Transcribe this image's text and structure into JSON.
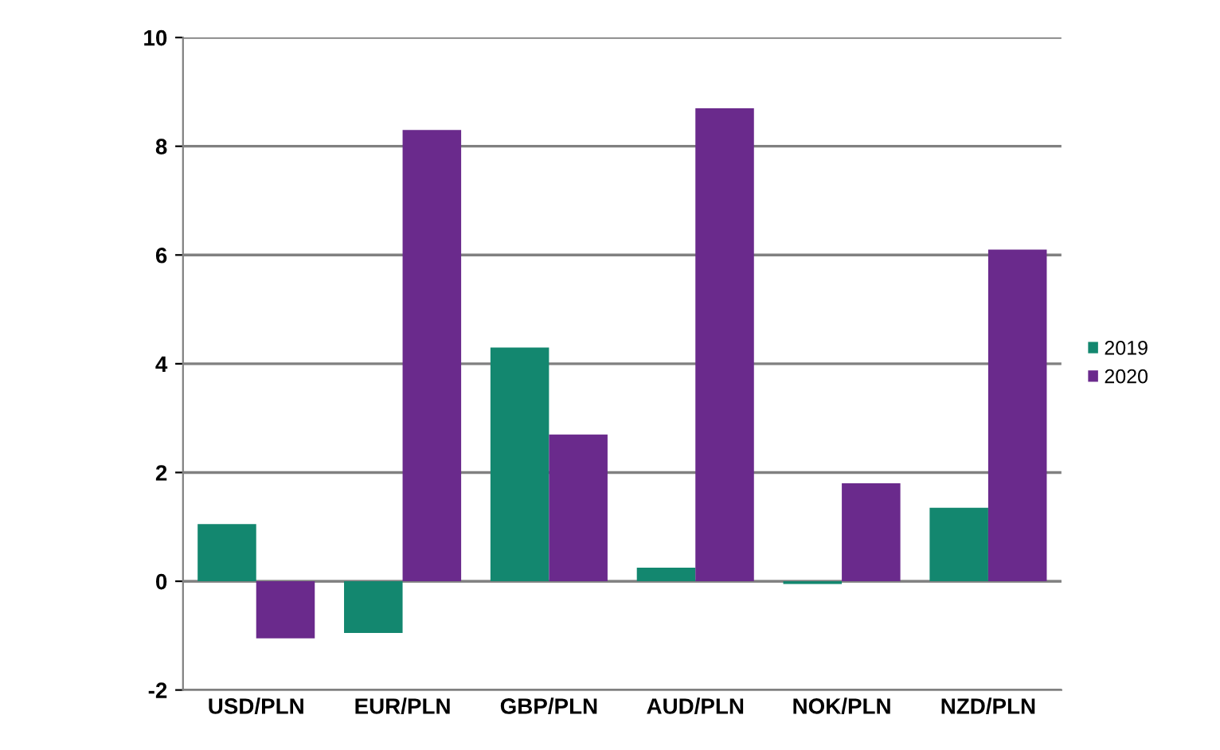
{
  "chart_data": {
    "type": "bar",
    "categories": [
      "USD/PLN",
      "EUR/PLN",
      "GBP/PLN",
      "AUD/PLN",
      "NOK/PLN",
      "NZD/PLN"
    ],
    "series": [
      {
        "name": "2019",
        "color": "#13876f",
        "values": [
          1.05,
          -0.95,
          4.3,
          0.25,
          -0.05,
          1.35
        ]
      },
      {
        "name": "2020",
        "color": "#6a2a8c",
        "values": [
          -1.05,
          8.3,
          2.7,
          8.7,
          1.8,
          6.1
        ]
      }
    ],
    "ylim": [
      -2,
      10
    ],
    "yticks": [
      -2,
      0,
      2,
      4,
      6,
      8,
      10
    ],
    "grid": "y",
    "legend": "right"
  }
}
